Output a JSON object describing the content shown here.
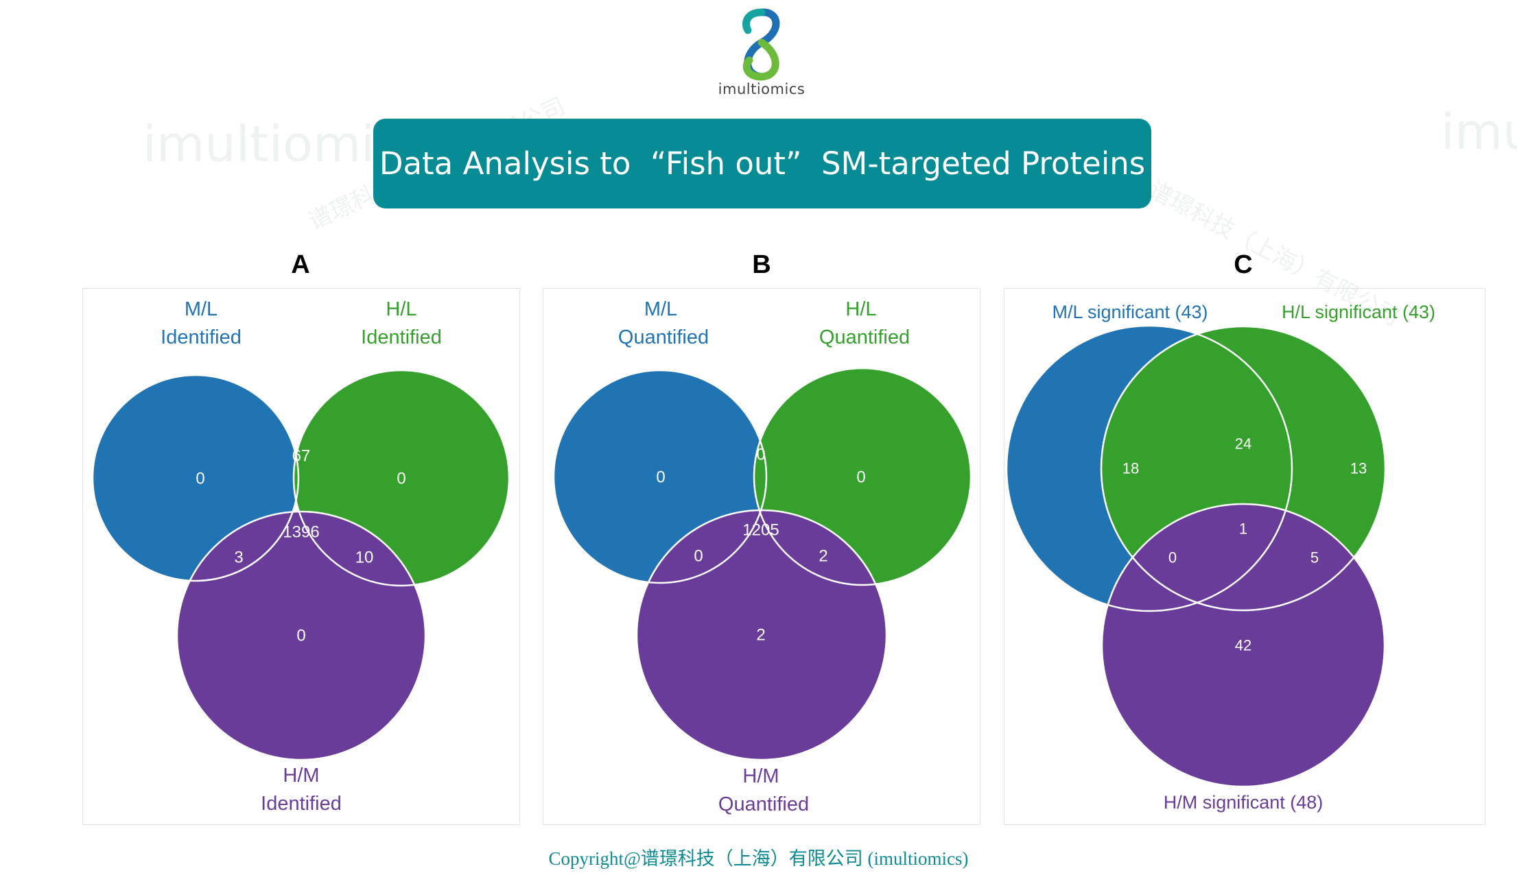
{
  "logo": {
    "text": "imultiomics",
    "icon": "infinity-loop-logo-icon"
  },
  "title": "Data Analysis to  “Fish out”  SM-targeted Proteins",
  "colors": {
    "banner": "#078b94",
    "ml": "#2074b4",
    "hl": "#35a02c",
    "hm": "#6a3c99",
    "copyright": "#0e8b92"
  },
  "chart_data": [
    {
      "type": "venn",
      "panel": "A",
      "sets": [
        {
          "name": "ml",
          "label_line1": "M/L",
          "label_line2": "Identified"
        },
        {
          "name": "hl",
          "label_line1": "H/L",
          "label_line2": "Identified"
        },
        {
          "name": "hm",
          "label_line1": "H/M",
          "label_line2": "Identified"
        }
      ],
      "regions": {
        "ml_only": "0",
        "hl_only": "0",
        "ml_hl": "67",
        "all": "1396",
        "ml_hm": "3",
        "hl_hm": "10",
        "hm_only": "0"
      }
    },
    {
      "type": "venn",
      "panel": "B",
      "sets": [
        {
          "name": "ml",
          "label_line1": "M/L",
          "label_line2": "Quantified"
        },
        {
          "name": "hl",
          "label_line1": "H/L",
          "label_line2": "Quantified"
        },
        {
          "name": "hm",
          "label_line1": "H/M",
          "label_line2": "Quantified"
        }
      ],
      "regions": {
        "ml_only": "0",
        "hl_only": "0",
        "ml_hl": "0",
        "all": "1205",
        "ml_hm": "0",
        "hl_hm": "2",
        "hm_only": "2"
      }
    },
    {
      "type": "venn",
      "panel": "C",
      "sets": [
        {
          "name": "ml",
          "label_line1": "M/L significant (43)"
        },
        {
          "name": "hl",
          "label_line1": "H/L significant (43)"
        },
        {
          "name": "hm",
          "label_line1": "H/M significant (48)"
        }
      ],
      "regions": {
        "ml_only": "18",
        "hl_only": "13",
        "ml_hl": "24",
        "all": "1",
        "ml_hm": "0",
        "hl_hm": "5",
        "hm_only": "42"
      }
    }
  ],
  "watermark": {
    "brand": "imultiomics",
    "cn": "谱璟科技（上海）有限公司"
  },
  "copyright": "Copyright@谱璟科技（上海）有限公司 (imultiomics)"
}
